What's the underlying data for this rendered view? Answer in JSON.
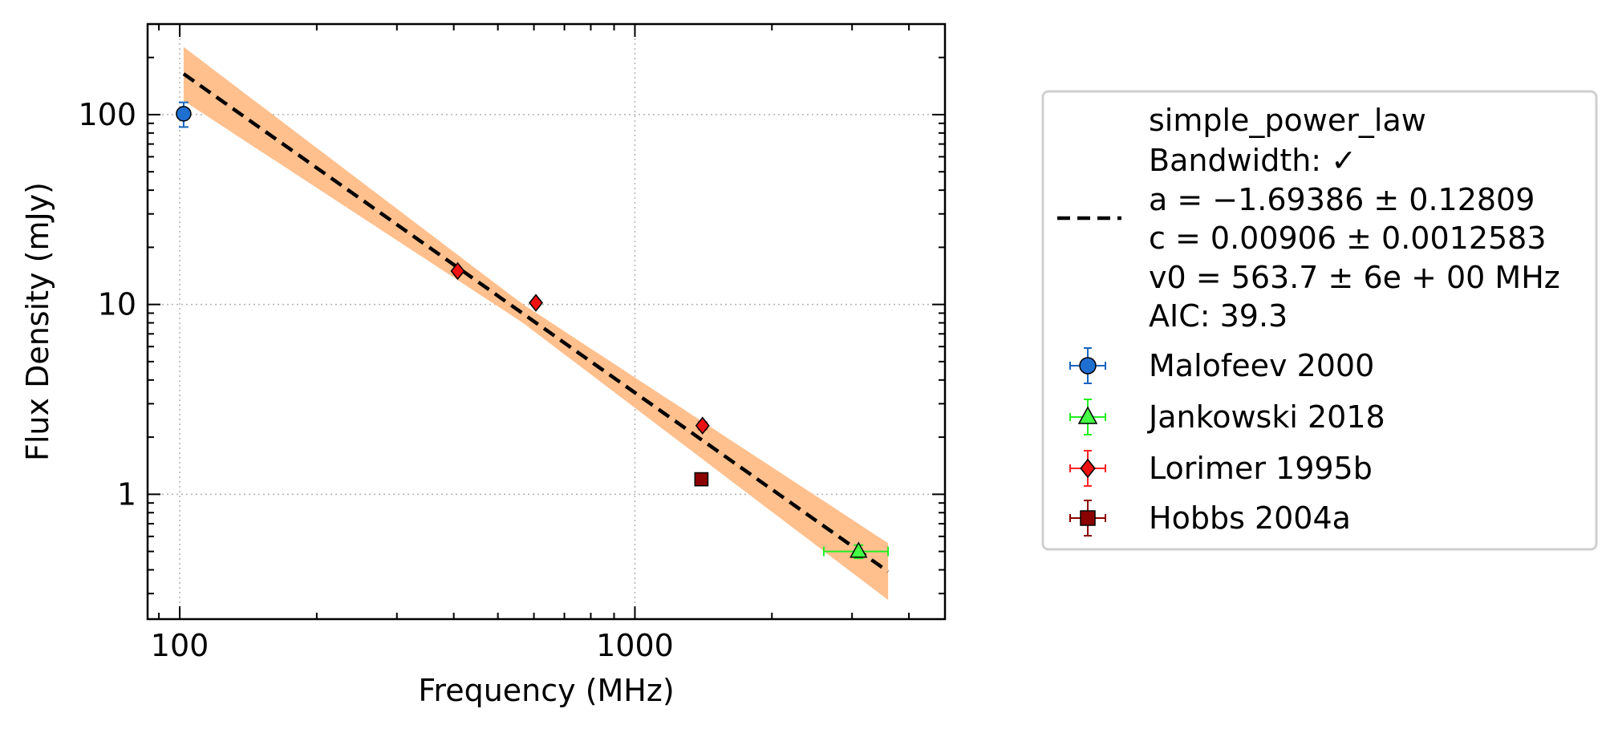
{
  "chart_data": {
    "type": "scatter",
    "xlabel": "Frequency (MHz)",
    "ylabel": "Flux Density (mJy)",
    "xscale": "log",
    "yscale": "log",
    "xlim": [
      85,
      4800
    ],
    "ylim": [
      0.22,
      300
    ],
    "x_ticks": [
      {
        "value": 100,
        "label": "100"
      },
      {
        "value": 1000,
        "label": "1000"
      }
    ],
    "y_ticks": [
      {
        "value": 1,
        "label": "1"
      },
      {
        "value": 10,
        "label": "10"
      },
      {
        "value": 100,
        "label": "100"
      }
    ],
    "grid": true,
    "legend_position": "outside-right",
    "fit": {
      "label_lines": [
        "simple_power_law",
        "Bandwidth: ✓",
        "a = −1.69386 ± 0.12809",
        "c = 0.00906 ± 0.0012583",
        "v0 = 563.7 ± 6e + 00 MHz",
        "AIC: 39.3"
      ],
      "model": "simple_power_law",
      "a": -1.69386,
      "c": 0.00906,
      "v0": 563.7,
      "x_range": [
        102,
        3600
      ],
      "band_dex_ref": 0.049,
      "band_dex_scale": 0.125,
      "line_color": "#000000",
      "band_color": "#ffc08e"
    },
    "series": [
      {
        "name": "Malofeev 2000",
        "marker": "circle",
        "color": "#1f6fd1",
        "error_color": "#1565c0",
        "points": [
          {
            "x": 102,
            "y": 101,
            "yerr": 15
          }
        ]
      },
      {
        "name": "Jankowski 2018",
        "marker": "triangle",
        "color": "#44ff44",
        "error_color": "#22ee22",
        "points": [
          {
            "x": 3100,
            "y": 0.5,
            "xerr_low": 500,
            "xerr_high": 500,
            "yerr": 0.04
          }
        ]
      },
      {
        "name": "Lorimer 1995b",
        "marker": "diamond",
        "color": "#ee1111",
        "error_color": "#ff2222",
        "points": [
          {
            "x": 408,
            "y": 15.0,
            "yerr": 0.5
          },
          {
            "x": 606,
            "y": 10.2,
            "yerr": 0.3
          },
          {
            "x": 1408,
            "y": 2.3,
            "yerr": 0.1
          }
        ]
      },
      {
        "name": "Hobbs 2004a",
        "marker": "square",
        "color": "#8b0000",
        "error_color": "#8b0000",
        "points": [
          {
            "x": 1400,
            "y": 1.2,
            "yerr": 0.05
          }
        ]
      }
    ]
  }
}
